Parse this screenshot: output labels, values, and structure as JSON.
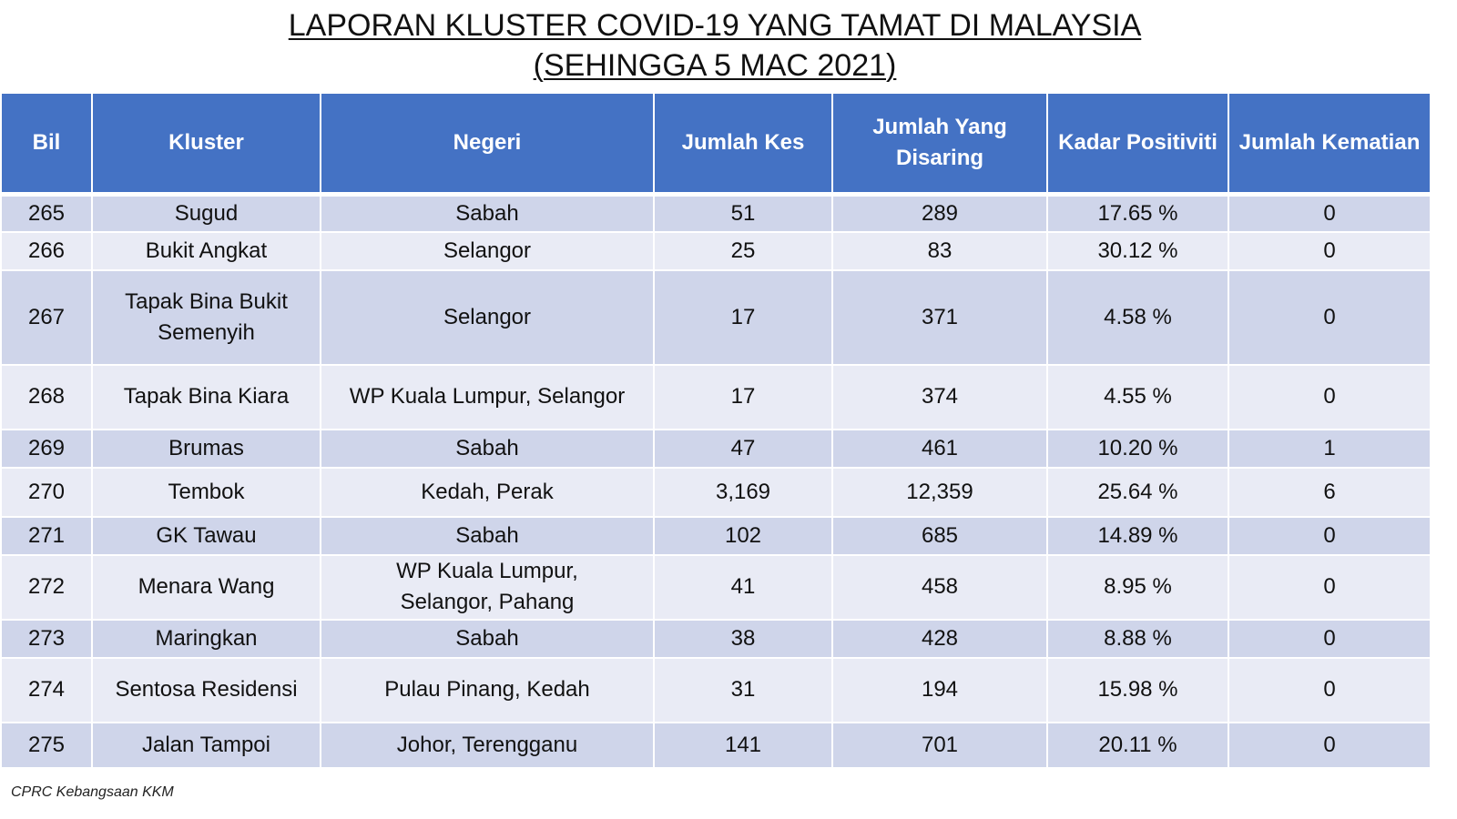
{
  "title": {
    "line1": "LAPORAN KLUSTER COVID-19 YANG TAMAT DI MALAYSIA",
    "line2": "(SEHINGGA  5 MAC 2021)"
  },
  "table": {
    "headers": [
      "Bil",
      "Kluster",
      "Negeri",
      "Jumlah Kes",
      "Jumlah Yang Disaring",
      "Kadar Positiviti",
      "Jumlah Kematian"
    ],
    "rows": [
      [
        "265",
        "Sugud",
        "Sabah",
        "51",
        "289",
        "17.65 %",
        "0"
      ],
      [
        "266",
        "Bukit Angkat",
        "Selangor",
        "25",
        "83",
        "30.12 %",
        "0"
      ],
      [
        "267",
        "Tapak Bina Bukit Semenyih",
        "Selangor",
        "17",
        "371",
        "4.58 %",
        "0"
      ],
      [
        "268",
        "Tapak Bina Kiara",
        "WP Kuala Lumpur, Selangor",
        "17",
        "374",
        "4.55 %",
        "0"
      ],
      [
        "269",
        "Brumas",
        "Sabah",
        "47",
        "461",
        "10.20 %",
        "1"
      ],
      [
        "270",
        "Tembok",
        "Kedah, Perak",
        "3,169",
        "12,359",
        "25.64 %",
        "6"
      ],
      [
        "271",
        "GK Tawau",
        "Sabah",
        "102",
        "685",
        "14.89 %",
        "0"
      ],
      [
        "272",
        "Menara Wang",
        "WP Kuala Lumpur, Selangor, Pahang",
        "41",
        "458",
        "8.95 %",
        "0"
      ],
      [
        "273",
        "Maringkan",
        "Sabah",
        "38",
        "428",
        "8.88 %",
        "0"
      ],
      [
        "274",
        "Sentosa Residensi",
        "Pulau Pinang, Kedah",
        "31",
        "194",
        "15.98 %",
        "0"
      ],
      [
        "275",
        "Jalan Tampoi",
        "Johor, Terengganu",
        "141",
        "701",
        "20.11 %",
        "0"
      ]
    ]
  },
  "footer": {
    "source": "CPRC Kebangsaan KKM"
  }
}
